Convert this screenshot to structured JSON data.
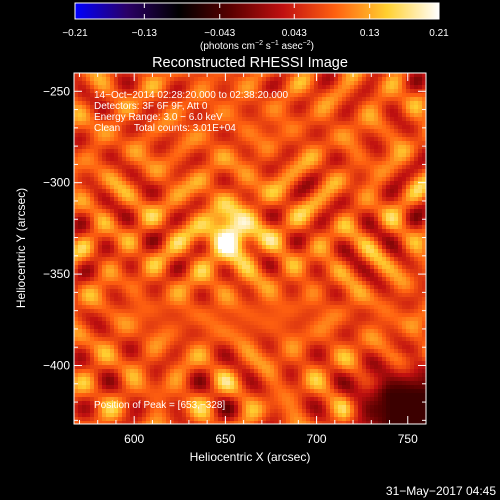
{
  "chart_data": {
    "type": "heatmap",
    "title": "Reconstructed RHESSI Image",
    "xlabel": "Heliocentric X (arcsec)",
    "ylabel": "Heliocentric Y (arcsec)",
    "xlim": [
      567,
      760
    ],
    "ylim": [
      -432,
      -240
    ],
    "x_ticks": [
      600,
      650,
      700,
      750
    ],
    "x_tick_labels": [
      "600",
      "650",
      "700",
      "750"
    ],
    "y_ticks": [
      -250,
      -300,
      -350,
      -400
    ],
    "y_tick_labels": [
      "−250",
      "−300",
      "−350",
      "−400"
    ],
    "colorbar": {
      "range": [
        -0.21,
        0.21
      ],
      "ticks": [
        -0.21,
        -0.13,
        -0.043,
        0.043,
        0.13,
        0.21
      ],
      "tick_labels": [
        "−0.21",
        "−0.13",
        "−0.043",
        "0.043",
        "0.13",
        "0.21"
      ],
      "unit_parts": [
        "(photons cm",
        "−2",
        " s",
        "−1",
        " asec",
        "−2",
        ")"
      ],
      "colormap": [
        "#0000ff",
        "#2a0066",
        "#000000",
        "#5a0000",
        "#c01010",
        "#ff6010",
        "#ffd030",
        "#ffffff"
      ]
    },
    "annotations": [
      "14−Oct−2014 02:28:20.000 to 02:38:20.000",
      "Detectors: 3F 6F 9F, Att 0",
      "Energy Range: 3.0 − 6.0 keV",
      "Clean     Total counts: 3.01E+04"
    ],
    "peak_label": "Position of Peak = [653,−328]",
    "peak": {
      "x": 653,
      "y": -328,
      "value": 0.21
    },
    "background_level": 0.08,
    "negative_region": {
      "x": [
        715,
        760
      ],
      "y": [
        -432,
        -395
      ],
      "value": -0.05
    }
  },
  "footer": {
    "date": "31−May−2017 04:45"
  }
}
